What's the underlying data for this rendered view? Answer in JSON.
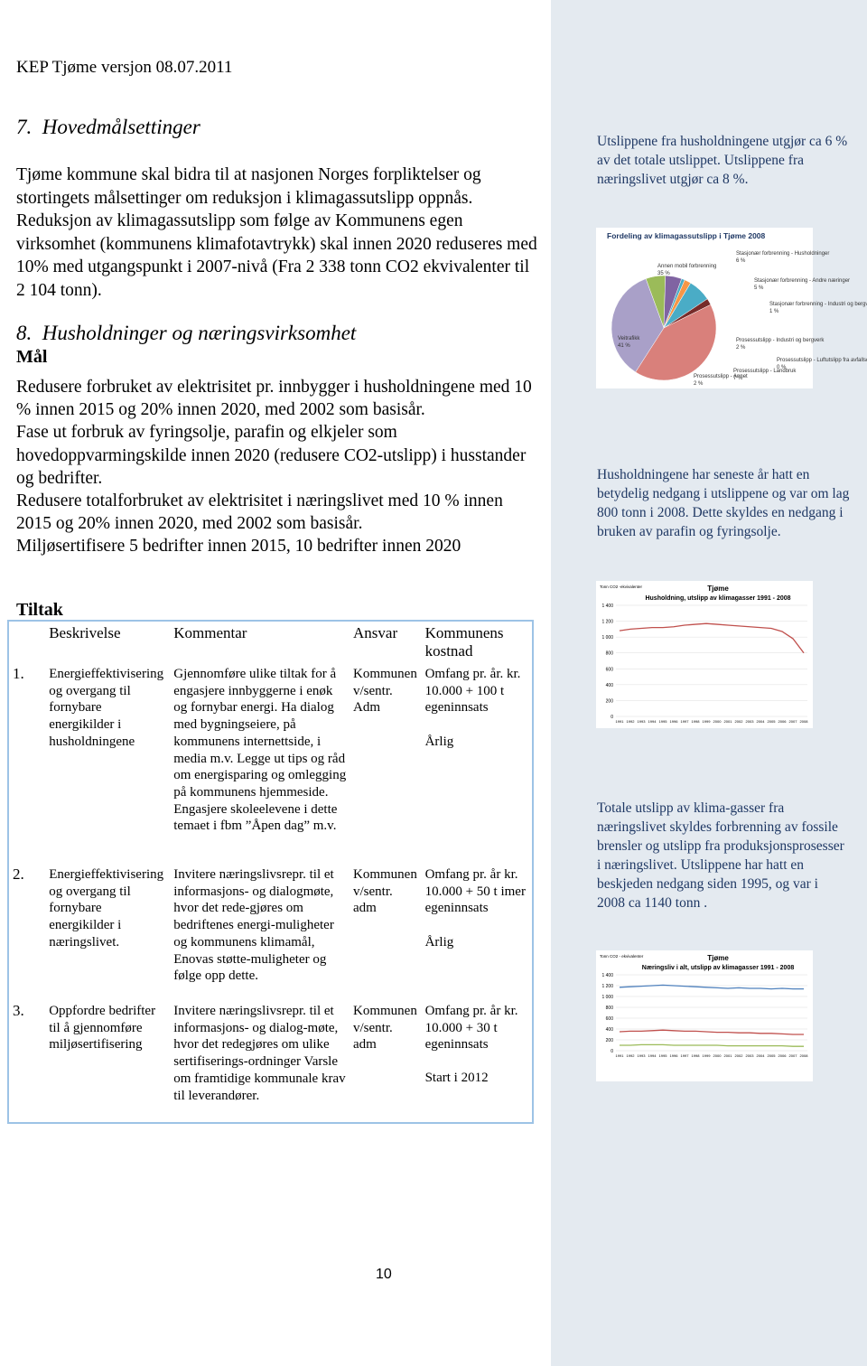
{
  "header": "KEP Tjøme versjon 08.07.2011",
  "section_7": {
    "number": "7.",
    "title": "Hovedmålsettinger",
    "paragraphs": [
      "Tjøme kommune skal bidra til at nasjonen Norges forpliktelser og stortingets målsettinger om reduksjon i klimagassutslipp oppnås.",
      "Reduksjon av klimagassutslipp som følge av Kommunens egen virksomhet (kommunens klimafotavtrykk) skal innen 2020 reduseres med 10% med utgangspunkt i 2007-nivå (Fra 2 338 tonn CO2 ekvivalenter til 2 104 tonn)."
    ]
  },
  "section_8": {
    "number": "8.",
    "title": "Husholdninger og næringsvirksomhet",
    "subheading": "Mål",
    "paragraphs": [
      "Redusere forbruket av elektrisitet pr. innbygger i husholdningene med 10 % innen 2015 og 20%  innen 2020, med 2002 som basisår.",
      "Fase ut forbruk av fyringsolje, parafin og elkjeler som hovedoppvarmingskilde innen 2020 (redusere CO2-utslipp) i husstander og bedrifter.",
      "Redusere totalforbruket av elektrisitet i næringslivet med 10 % innen 2015 og 20% innen 2020, med 2002 som basisår.",
      "Miljøsertifisere 5 bedrifter innen 2015, 10 bedrifter innen 2020"
    ]
  },
  "tiltak": {
    "heading": "Tiltak",
    "table": {
      "headers": [
        "Beskrivelse",
        "Kommentar",
        "Ansvar",
        "Kommunens kostnad"
      ],
      "rows": [
        [
          "1.",
          "Energieffektivisering og overgang til fornybare energikilder i husholdningene",
          "Gjennomføre ulike tiltak for å engasjere innbyggerne i enøk og fornybar energi. Ha dialog med bygningseiere, på kommunens internettside, i media m.v. Legge ut tips og råd om energisparing og omlegging på kommunens hjemmeside. Engasjere skoleelevene i dette temaet i fbm ”Åpen dag” m.v.",
          "Kommunen v/sentr. Adm",
          "Omfang pr. år. kr. 10.000 + 100 t egeninnsats",
          "Årlig"
        ],
        [
          "2.",
          "Energieffektivisering og overgang til fornybare energikilder i næringslivet.",
          "Invitere næringslivsrepr. til et informasjons- og dialogmøte, hvor det rede-gjøres om bedriftenes energi-muligheter og kommunens klimamål, Enovas støtte-muligheter og følge opp dette.",
          "Kommunen v/sentr. adm",
          "Omfang pr. år kr. 10.000 + 50 t imer egeninnsats",
          "Årlig"
        ],
        [
          "3.",
          "Oppfordre bedrifter til å gjennomføre miljøsertifisering",
          "Invitere næringslivsrepr. til et informasjons- og dialog-møte, hvor det redegjøres om ulike sertifiserings-ordninger Varsle om framtidige kommunale krav til leverandører.",
          "Kommunen v/sentr. adm",
          "Omfang pr. år kr. 10.000 + 30 t egeninnsats",
          "Start i 2012"
        ]
      ]
    }
  },
  "sidebar": {
    "paragraphs": [
      "Utslippene fra husholdningene utgjør ca 6 % av det totale utslippet. Utslippene fra næringslivet utgjør ca 8 %.",
      "Husholdningene har seneste år hatt en betydelig nedgang i utslippene og var om lag 800 tonn i 2008. Dette skyldes en nedgang i bruken av parafin og fyringsolje.",
      "Totale utslipp av klima-gasser fra næringslivet skyldes forbrenning av fossile brensler og utslipp fra produksjonsprosesser i næringslivet. Utslippene har hatt en beskjeden nedgang siden 1995, og var i 2008 ca 1140 tonn ."
    ]
  },
  "figures": [
    {
      "type": "pie",
      "title": "Fordeling av klimagassutslipp i Tjøme 2008",
      "categories": [
        "Stasjonær forbrenning - Husholdninger",
        "Stasjonær forbrenning - Andre næringer",
        "Stasjonær forbrenning - Industri og bergverk",
        "Prosessutslipp - Industri og bergverk",
        "Prosessutslipp - Luftutslipp fra avfallsdeponier",
        "Prosessutslipp - Landbruk",
        "Prosessutslipp - Annet",
        "Veitrafikk",
        "Annen mobil forbrenning"
      ],
      "values": [
        6,
        5,
        1,
        2,
        0,
        7,
        2,
        41,
        35
      ],
      "value_labels": [
        "6 %",
        "5 %",
        "1 %",
        "2 %",
        "0 %",
        "7 %",
        "2 %",
        "41 %",
        "35 %"
      ],
      "colors": [
        "#9bbb59",
        "#8064a2",
        "#4bacc6",
        "#f79646",
        "#2c4d75",
        "#4aacc6",
        "#772c2a",
        "#d9807b",
        "#a9a0c8"
      ]
    },
    {
      "type": "line",
      "title": "Tjøme",
      "subtitle": "Husholdning, utslipp av klimagasser 1991 - 2008",
      "y_label": "Tonn CO2 -ekvivalenter",
      "x": [
        1991,
        1992,
        1993,
        1994,
        1995,
        1996,
        1997,
        1998,
        1999,
        2000,
        2001,
        2002,
        2003,
        2004,
        2005,
        2006,
        2007,
        2008
      ],
      "series": [
        {
          "color": "#c0504d",
          "values": [
            1080,
            1100,
            1110,
            1120,
            1120,
            1130,
            1150,
            1160,
            1170,
            1160,
            1150,
            1140,
            1130,
            1120,
            1110,
            1070,
            980,
            800
          ]
        }
      ],
      "ylim": [
        0,
        1400
      ],
      "yticks": [
        0,
        200,
        400,
        600,
        800,
        {
          "value": 1000,
          "label": "1 000"
        },
        {
          "value": 1200,
          "label": "1 200"
        },
        {
          "value": 1400,
          "label": "1 400"
        }
      ],
      "grid": true
    },
    {
      "type": "line",
      "title": "Tjøme",
      "subtitle": "Næringsliv i alt, utslipp av klimagasser 1991 - 2008",
      "y_label": "Tonn CO2 - ekvivalenter",
      "x": [
        1991,
        1992,
        1993,
        1994,
        1995,
        1996,
        1997,
        1998,
        1999,
        2000,
        2001,
        2002,
        2003,
        2004,
        2005,
        2006,
        2007,
        2008
      ],
      "series": [
        {
          "color": "#4f81bd",
          "values": [
            1170,
            1180,
            1190,
            1200,
            1210,
            1200,
            1190,
            1180,
            1170,
            1160,
            1150,
            1160,
            1150,
            1150,
            1140,
            1150,
            1140,
            1140
          ]
        },
        {
          "color": "#c0504d",
          "values": [
            350,
            360,
            360,
            370,
            380,
            370,
            360,
            360,
            350,
            340,
            340,
            330,
            330,
            320,
            320,
            310,
            300,
            300
          ]
        },
        {
          "color": "#9bbb59",
          "values": [
            100,
            100,
            110,
            110,
            110,
            100,
            100,
            100,
            100,
            100,
            90,
            90,
            90,
            90,
            90,
            90,
            80,
            80
          ]
        }
      ],
      "ylim": [
        0,
        1400
      ],
      "yticks": [
        0,
        200,
        400,
        600,
        800,
        {
          "value": 1000,
          "label": "1 000"
        },
        {
          "value": 1200,
          "label": "1 200"
        },
        {
          "value": 1400,
          "label": "1 400"
        }
      ],
      "grid": true
    }
  ],
  "page_number": "10"
}
